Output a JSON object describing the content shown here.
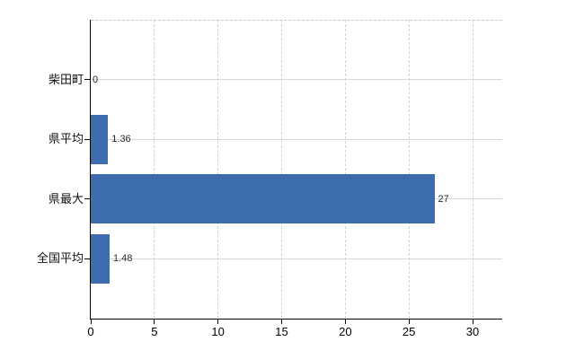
{
  "chart_data": {
    "type": "bar",
    "orientation": "horizontal",
    "title": "",
    "categories": [
      "柴田町",
      "県平均",
      "県最大",
      "全国平均"
    ],
    "values": [
      0,
      1.36,
      27,
      1.48
    ],
    "value_labels": [
      "0",
      "1.36",
      "27",
      "1.48"
    ],
    "xlim": [
      0,
      30
    ],
    "xticks": [
      0,
      5,
      10,
      15,
      20,
      25,
      30
    ],
    "xtick_labels": [
      "0",
      "5",
      "10",
      "15",
      "20",
      "25",
      "30"
    ],
    "grid": "on",
    "legend": "none",
    "colors": {
      "bar": "#3d6dae",
      "axis": "#000000",
      "h_gridline": "#d4dbd4",
      "v_gridline": "#d8d2d6",
      "top_border": "#c9c9c9",
      "text": "#111111",
      "background": "#ffffff"
    }
  }
}
